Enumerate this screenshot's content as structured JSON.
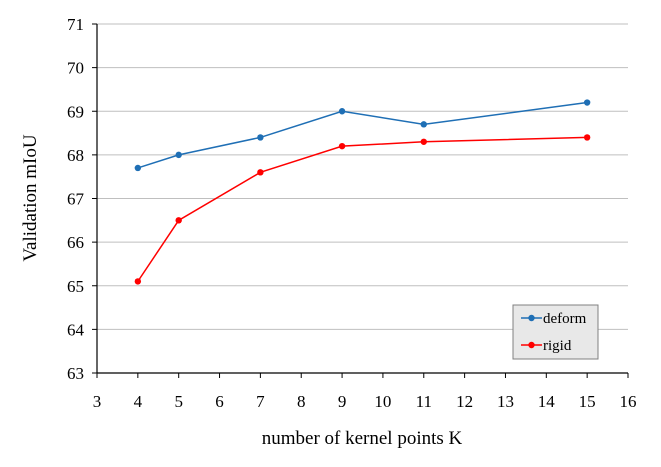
{
  "chart_data": {
    "type": "line",
    "title": "",
    "xlabel": "number of kernel points K",
    "ylabel": "Validation mIoU",
    "xlim": [
      3,
      16
    ],
    "ylim": [
      63,
      71
    ],
    "xticks": [
      3,
      4,
      5,
      6,
      7,
      8,
      9,
      10,
      11,
      12,
      13,
      14,
      15,
      16
    ],
    "yticks": [
      63,
      64,
      65,
      66,
      67,
      68,
      69,
      70,
      71
    ],
    "grid": "horizontal",
    "legend_position": "bottom-right",
    "series": [
      {
        "name": "deform",
        "color": "#1f6fb5",
        "x": [
          4,
          5,
          7,
          9,
          11,
          15
        ],
        "y": [
          67.7,
          68.0,
          68.4,
          69.0,
          68.7,
          69.2
        ]
      },
      {
        "name": "rigid",
        "color": "#ff0000",
        "x": [
          4,
          5,
          7,
          9,
          11,
          15
        ],
        "y": [
          65.1,
          66.5,
          67.6,
          68.2,
          68.3,
          68.4
        ]
      }
    ]
  },
  "colors": {
    "grid": "#bfbfbf",
    "axis": "#000000",
    "legend_bg": "#e8e8e8",
    "legend_border": "#808080"
  }
}
